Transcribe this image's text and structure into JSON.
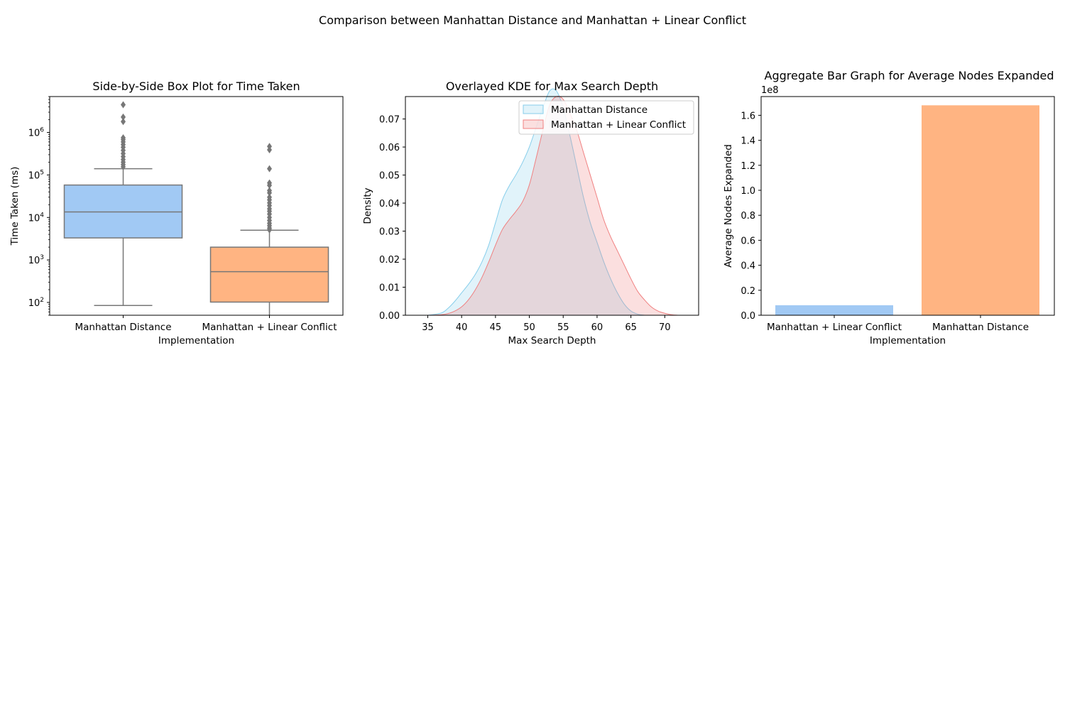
{
  "suptitle": "Comparison between Manhattan Distance and Manhattan + Linear Conflict",
  "colors": {
    "blue_fill": "#a1c9f4",
    "orange_fill": "#ffb482",
    "box_edge": "#777777",
    "kde_blue_line": "#87ceeb",
    "kde_blue_fill": "#87ceeb",
    "kde_red_line": "#f08080",
    "kde_red_fill": "#f08080"
  },
  "chart_data": [
    {
      "type": "box",
      "title": "Side-by-Side Box Plot for Time Taken",
      "xlabel": "Implementation",
      "ylabel": "Time Taken (ms)",
      "yscale": "log",
      "ylim": [
        50,
        7000000
      ],
      "yticks": [
        {
          "value": 100,
          "base": "10",
          "exp": "2"
        },
        {
          "value": 1000,
          "base": "10",
          "exp": "3"
        },
        {
          "value": 10000,
          "base": "10",
          "exp": "4"
        },
        {
          "value": 100000,
          "base": "10",
          "exp": "5"
        },
        {
          "value": 1000000,
          "base": "10",
          "exp": "6"
        }
      ],
      "categories": [
        "Manhattan Distance",
        "Manhattan + Linear Conflict"
      ],
      "boxes": [
        {
          "name": "Manhattan Distance",
          "whisker_low": 85,
          "q1": 3300,
          "median": 13500,
          "q3": 58000,
          "whisker_high": 140000,
          "outliers": [
            4500000,
            2300000,
            1800000,
            750000,
            680000,
            600000,
            520000,
            450000,
            380000,
            320000,
            270000,
            230000,
            200000,
            175000,
            155000
          ]
        },
        {
          "name": "Manhattan + Linear Conflict",
          "whisker_low": 40,
          "q1": 102,
          "median": 530,
          "q3": 2000,
          "whisker_high": 5000,
          "outliers": [
            470000,
            390000,
            140000,
            65000,
            57000,
            43000,
            38000,
            30000,
            26000,
            22000,
            19000,
            16000,
            14000,
            12000,
            10000,
            8500,
            7300,
            6400,
            5600,
            5100
          ]
        }
      ]
    },
    {
      "type": "area",
      "title": "Overlayed KDE for Max Search Depth",
      "xlabel": "Max Search Depth",
      "ylabel": "Density",
      "xlim": [
        31.7,
        75.0
      ],
      "ylim": [
        0,
        0.078
      ],
      "xticks": [
        35,
        40,
        45,
        50,
        55,
        60,
        65,
        70
      ],
      "yticks": [
        {
          "value": 0.0,
          "label": "0.00"
        },
        {
          "value": 0.01,
          "label": "0.01"
        },
        {
          "value": 0.02,
          "label": "0.02"
        },
        {
          "value": 0.03,
          "label": "0.03"
        },
        {
          "value": 0.04,
          "label": "0.04"
        },
        {
          "value": 0.05,
          "label": "0.05"
        },
        {
          "value": 0.06,
          "label": "0.06"
        },
        {
          "value": 0.07,
          "label": "0.07"
        }
      ],
      "legend": "upper right",
      "series": [
        {
          "name": "Manhattan Distance",
          "x": [
            35,
            37,
            38,
            39,
            40,
            41,
            42,
            43,
            44,
            45,
            46,
            47,
            48,
            49,
            50,
            51,
            52,
            53,
            54,
            55,
            56,
            57,
            58,
            59,
            60,
            61,
            62,
            63,
            64,
            65,
            66,
            67
          ],
          "y": [
            0.0,
            0.0008,
            0.0025,
            0.005,
            0.008,
            0.011,
            0.0145,
            0.019,
            0.025,
            0.033,
            0.041,
            0.046,
            0.05,
            0.0545,
            0.06,
            0.067,
            0.074,
            0.08,
            0.08,
            0.074,
            0.064,
            0.053,
            0.042,
            0.033,
            0.026,
            0.019,
            0.013,
            0.008,
            0.004,
            0.0015,
            0.0004,
            0.0
          ]
        },
        {
          "name": "Manhattan + Linear Conflict",
          "x": [
            35,
            37,
            38,
            39,
            40,
            41,
            42,
            43,
            44,
            45,
            46,
            47,
            48,
            49,
            50,
            51,
            52,
            53,
            54,
            55,
            56,
            57,
            58,
            59,
            60,
            61,
            62,
            63,
            64,
            65,
            66,
            67,
            68,
            69,
            70,
            71,
            72
          ],
          "y": [
            0.0,
            0.0002,
            0.0006,
            0.0015,
            0.003,
            0.0055,
            0.009,
            0.0135,
            0.019,
            0.025,
            0.0305,
            0.034,
            0.037,
            0.0405,
            0.0465,
            0.056,
            0.066,
            0.075,
            0.078,
            0.077,
            0.072,
            0.066,
            0.058,
            0.05,
            0.042,
            0.034,
            0.028,
            0.023,
            0.018,
            0.013,
            0.0085,
            0.0055,
            0.003,
            0.0015,
            0.0007,
            0.0002,
            0.0
          ]
        }
      ]
    },
    {
      "type": "bar",
      "title": "Aggregate Bar Graph for Average Nodes Expanded",
      "xlabel": "Implementation",
      "ylabel": "Average Nodes Expanded",
      "offset_label": "1e8",
      "ylim": [
        0,
        175000000
      ],
      "yticks": [
        {
          "value": 0,
          "label": "0.0"
        },
        {
          "value": 20000000,
          "label": "0.2"
        },
        {
          "value": 40000000,
          "label": "0.4"
        },
        {
          "value": 60000000,
          "label": "0.6"
        },
        {
          "value": 80000000,
          "label": "0.8"
        },
        {
          "value": 100000000,
          "label": "1.0"
        },
        {
          "value": 120000000,
          "label": "1.2"
        },
        {
          "value": 140000000,
          "label": "1.4"
        },
        {
          "value": 160000000,
          "label": "1.6"
        }
      ],
      "categories": [
        "Manhattan + Linear Conflict",
        "Manhattan Distance"
      ],
      "values": [
        8000000,
        168000000
      ]
    }
  ]
}
